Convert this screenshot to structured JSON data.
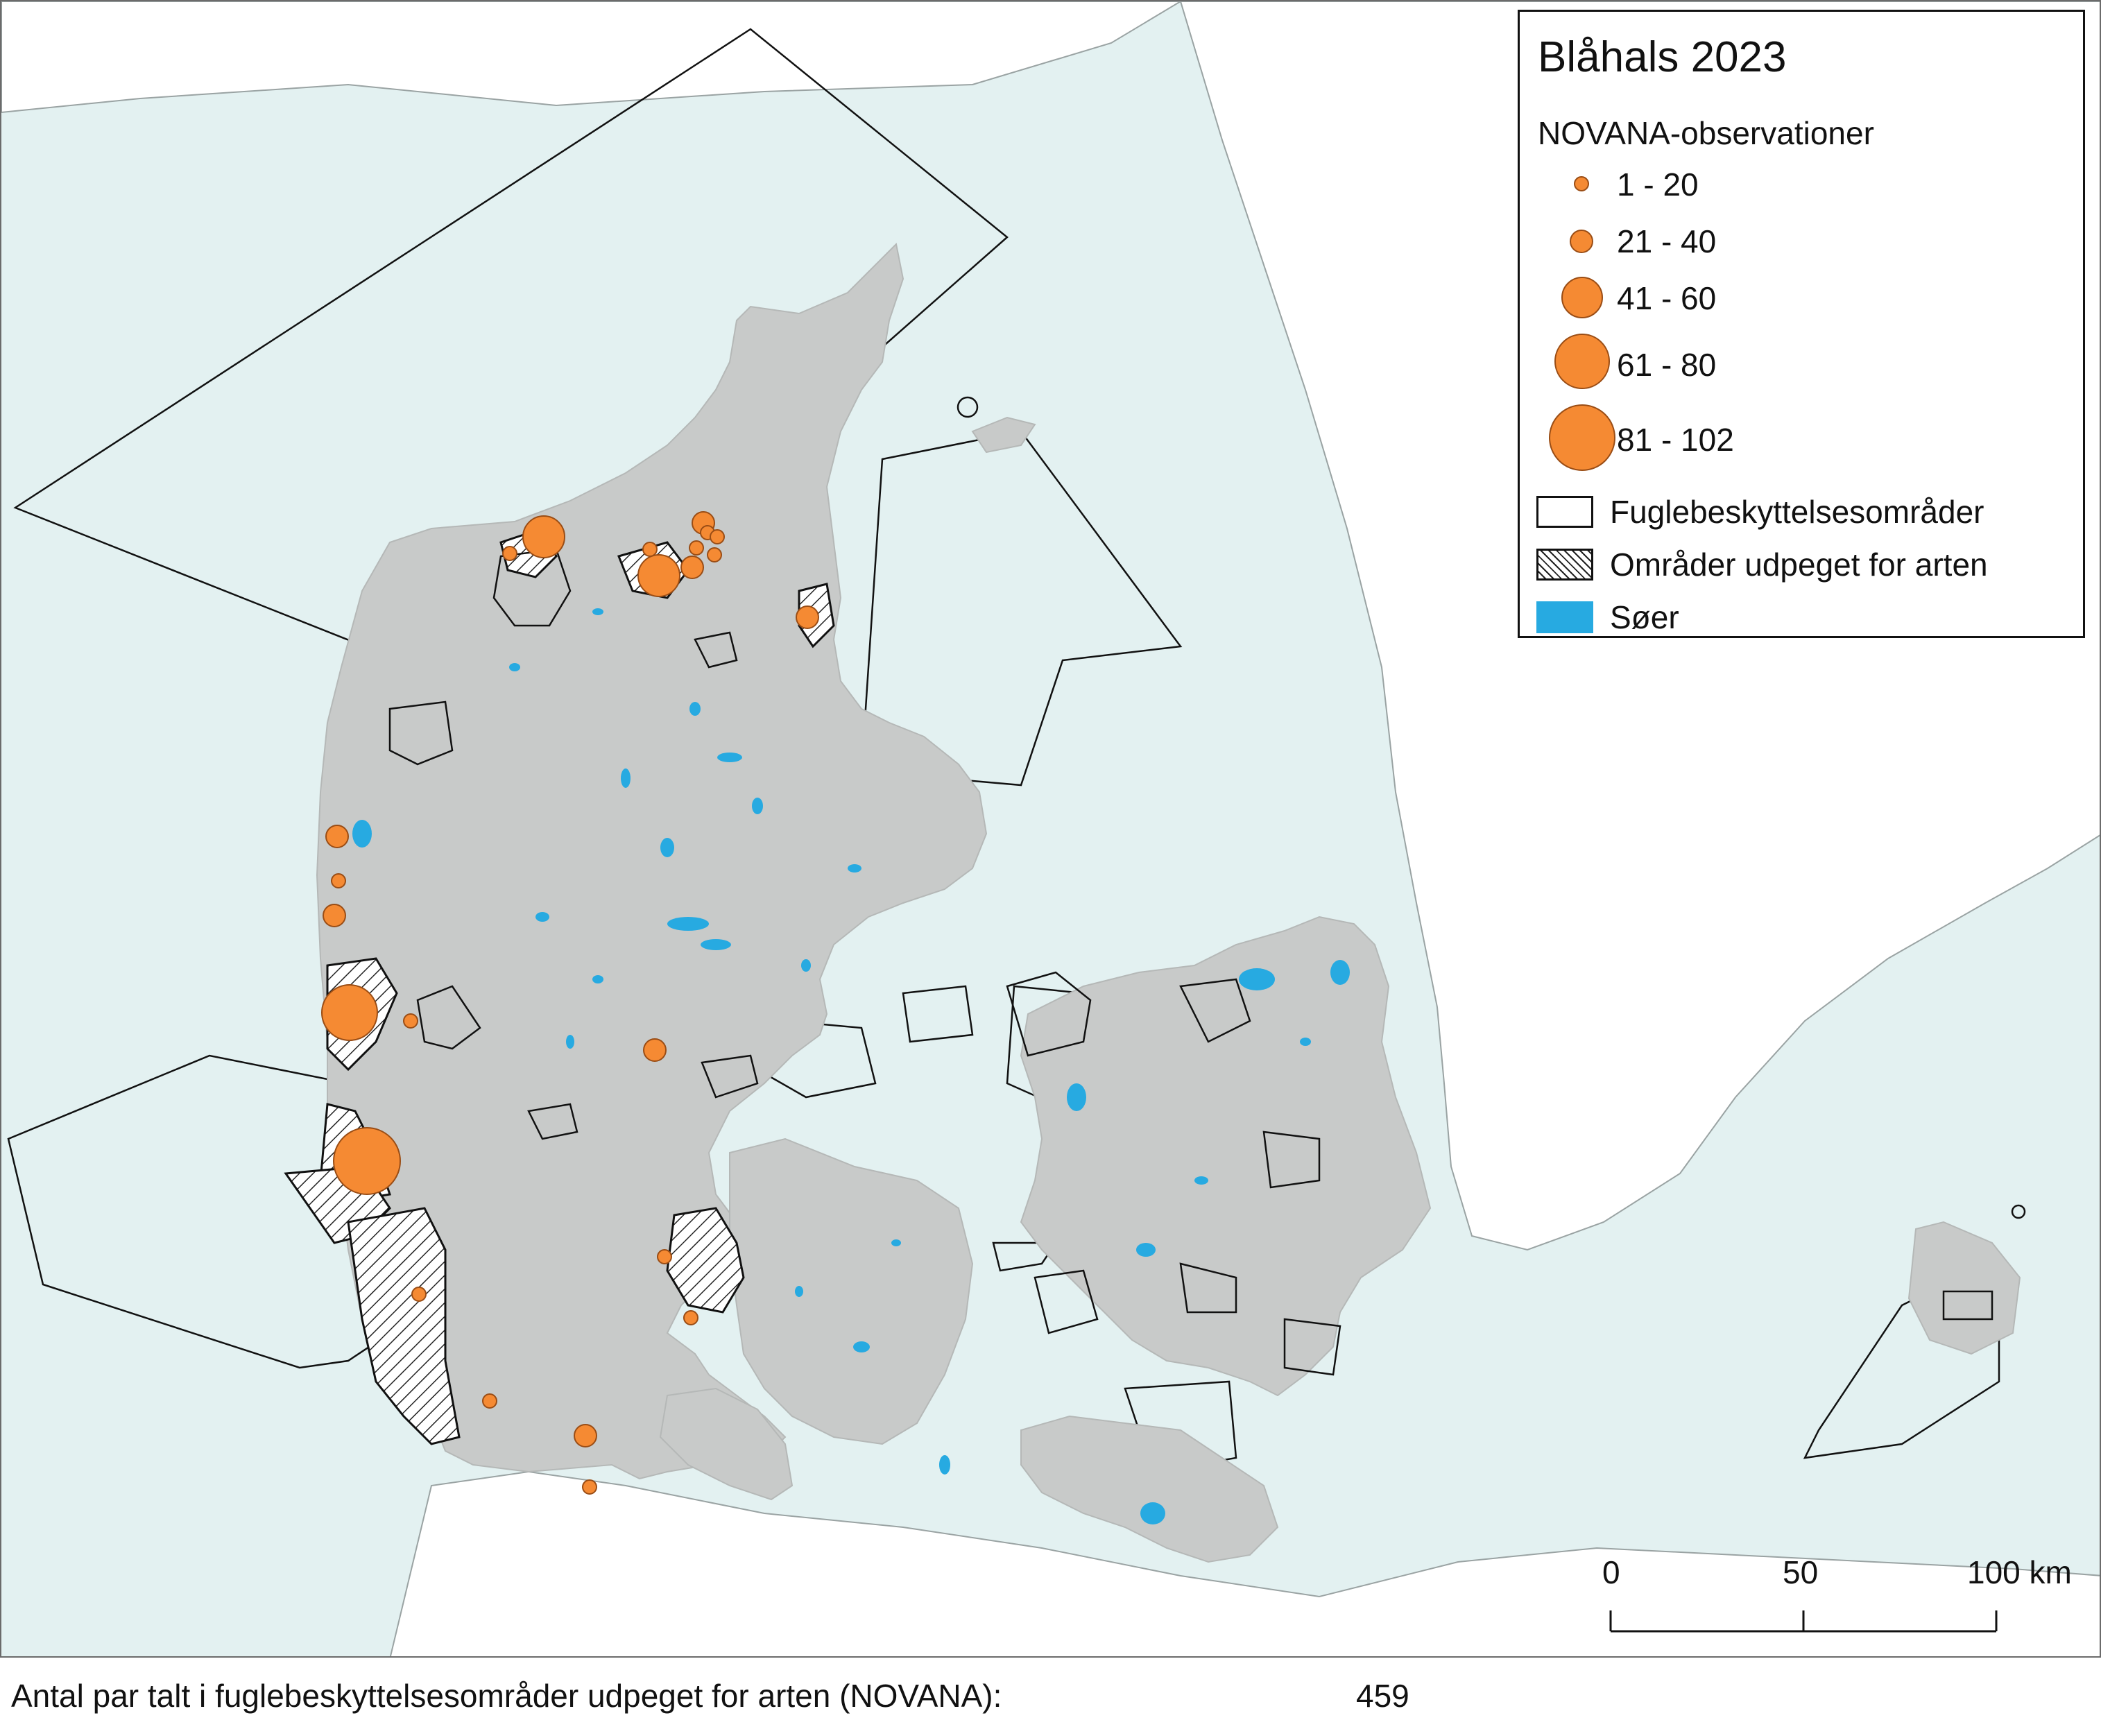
{
  "legend": {
    "title": "Blåhals 2023",
    "subtitle": "NOVANA-observationer",
    "classes": [
      {
        "label": "1 - 20"
      },
      {
        "label": "21 - 40"
      },
      {
        "label": "41 - 60"
      },
      {
        "label": "61 - 80"
      },
      {
        "label": "81 - 102"
      }
    ],
    "areas": [
      {
        "label": "Fuglebeskyttelsesområder",
        "fill": "#ffffff",
        "pattern": "none"
      },
      {
        "label": "Områder udpeget for arten",
        "fill": "#ffffff",
        "pattern": "hatch"
      },
      {
        "label": "Søer",
        "fill": "#27aae1",
        "pattern": "none"
      }
    ]
  },
  "scale": {
    "ticks": [
      "0",
      "50",
      "100 km"
    ]
  },
  "footer": {
    "text": "Antal par talt i fuglebeskyttelsesområder udpeget for arten (NOVANA):",
    "value": "459"
  },
  "colors": {
    "sea": "#e3f1f1",
    "land": "#c8cac9",
    "neighbouring_land": "#ffffff",
    "lakes": "#27aae1",
    "observations": "#f58a33"
  }
}
